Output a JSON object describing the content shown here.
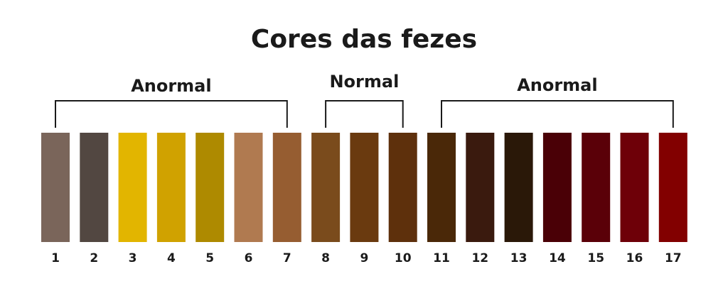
{
  "title": "Cores das fezes",
  "groups": [
    {
      "label": "Anormal",
      "swatches": [
        {
          "label": "1",
          "color": "#7a655a"
        },
        {
          "label": "2",
          "color": "#524741"
        },
        {
          "label": "3",
          "color": "#e2b500"
        },
        {
          "label": "4",
          "color": "#d0a200"
        },
        {
          "label": "5",
          "color": "#ae8a00"
        },
        {
          "label": "6",
          "color": "#b07a50"
        },
        {
          "label": "7",
          "color": "#965d31"
        }
      ]
    },
    {
      "label": "Normal",
      "swatches": [
        {
          "label": "8",
          "color": "#7a4b1c"
        },
        {
          "label": "9",
          "color": "#6a3a0f"
        },
        {
          "label": "10",
          "color": "#5e300c"
        }
      ]
    },
    {
      "label": "Anormal",
      "swatches": [
        {
          "label": "11",
          "color": "#4a2808"
        },
        {
          "label": "12",
          "color": "#3a1a0e"
        },
        {
          "label": "13",
          "color": "#2a1808"
        },
        {
          "label": "14",
          "color": "#4a0006"
        },
        {
          "label": "15",
          "color": "#5a0008"
        },
        {
          "label": "16",
          "color": "#6e0008"
        },
        {
          "label": "17",
          "color": "#820000"
        }
      ]
    }
  ]
}
